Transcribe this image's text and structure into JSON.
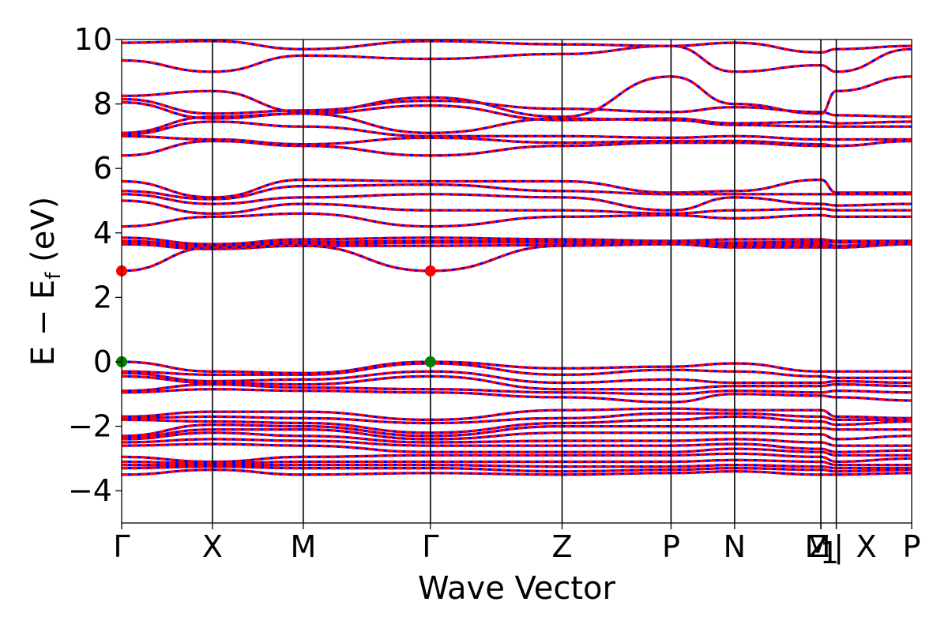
{
  "chart_data": {
    "type": "line",
    "title": "",
    "xlabel": "Wave Vector",
    "ylabel_parts": {
      "main": "E − E",
      "sub": "f",
      "unit": " (eV)"
    },
    "ylim": [
      -5,
      10
    ],
    "yticks": [
      -4,
      -2,
      0,
      2,
      4,
      6,
      8,
      10
    ],
    "ytick_labels": [
      "−4",
      "−2",
      "0",
      "2",
      "4",
      "6",
      "8",
      "10"
    ],
    "xlim": [
      0,
      8.7
    ],
    "kpath": [
      {
        "label": "Γ",
        "x": 0.0
      },
      {
        "label": "X",
        "x": 1.0
      },
      {
        "label": "M",
        "x": 2.0
      },
      {
        "label": "Γ",
        "x": 3.4
      },
      {
        "label": "Z",
        "x": 4.85
      },
      {
        "label": "P",
        "x": 6.05
      },
      {
        "label": "N",
        "x": 6.75
      },
      {
        "label": "Z",
        "x": 7.7
      },
      {
        "label": "M",
        "x": 7.7
      },
      {
        "label": "1",
        "x": 7.7
      },
      {
        "label": "|",
        "x": 7.87
      },
      {
        "label": "X",
        "x": 7.87
      },
      {
        "label": "P",
        "x": 8.7
      }
    ],
    "grid": false,
    "legend": "none",
    "colors": {
      "band_primary": "#ff0000",
      "band_secondary": "#0000ff",
      "cbm": "#ff0000",
      "vbm": "#008000",
      "axis": "#000000"
    },
    "markers": [
      {
        "kind": "CBM",
        "x": 0.0,
        "y": 2.82
      },
      {
        "kind": "CBM",
        "x": 3.4,
        "y": 2.82
      },
      {
        "kind": "VBM",
        "x": 0.0,
        "y": 0.0
      },
      {
        "kind": "VBM",
        "x": 3.4,
        "y": 0.0
      }
    ],
    "bands": [
      {
        "E": [
          9.9,
          9.95,
          9.7,
          9.95,
          9.85,
          9.8,
          9.9,
          9.6,
          9.7,
          9.8
        ]
      },
      {
        "E": [
          9.35,
          9.0,
          9.5,
          9.4,
          9.55,
          9.8,
          9.0,
          9.2,
          9.0,
          9.7
        ]
      },
      {
        "E": [
          8.25,
          8.4,
          7.75,
          8.2,
          7.6,
          8.85,
          8.0,
          7.7,
          8.4,
          8.85
        ]
      },
      {
        "E": [
          8.15,
          7.7,
          7.8,
          8.1,
          7.85,
          7.75,
          7.9,
          7.75,
          7.65,
          7.6
        ]
      },
      {
        "E": [
          8.05,
          7.55,
          7.7,
          7.95,
          7.5,
          7.55,
          7.4,
          7.45,
          7.4,
          7.45
        ]
      },
      {
        "E": [
          7.1,
          7.6,
          7.7,
          7.1,
          7.55,
          7.5,
          7.35,
          7.3,
          7.3,
          7.3
        ]
      },
      {
        "E": [
          7.05,
          7.45,
          7.3,
          7.0,
          7.0,
          6.95,
          7.0,
          6.9,
          6.9,
          6.9
        ]
      },
      {
        "E": [
          7.0,
          6.9,
          6.75,
          6.95,
          6.8,
          6.85,
          6.85,
          6.75,
          6.7,
          6.85
        ]
      },
      {
        "E": [
          6.4,
          6.85,
          6.7,
          6.4,
          6.7,
          6.8,
          6.8,
          6.7,
          6.7,
          6.85
        ]
      },
      {
        "E": [
          5.6,
          5.1,
          5.65,
          5.6,
          5.6,
          5.25,
          5.3,
          5.65,
          5.25,
          5.25
        ]
      },
      {
        "E": [
          5.3,
          5.05,
          5.45,
          5.5,
          5.3,
          5.2,
          5.2,
          5.2,
          5.2,
          5.2
        ]
      },
      {
        "E": [
          5.2,
          4.9,
          5.1,
          5.2,
          5.1,
          4.7,
          5.1,
          4.9,
          4.85,
          4.9
        ]
      },
      {
        "E": [
          5.0,
          4.6,
          4.9,
          4.7,
          4.7,
          4.6,
          4.7,
          4.75,
          4.7,
          4.7
        ]
      },
      {
        "E": [
          4.2,
          4.5,
          4.6,
          4.2,
          4.5,
          4.55,
          4.45,
          4.55,
          4.5,
          4.5
        ]
      },
      {
        "E": [
          3.85,
          3.65,
          3.8,
          3.85,
          3.8,
          3.75,
          3.8,
          3.8,
          3.75,
          3.75
        ]
      },
      {
        "E": [
          3.75,
          3.6,
          3.72,
          3.75,
          3.75,
          3.72,
          3.7,
          3.72,
          3.7,
          3.72
        ]
      },
      {
        "E": [
          3.7,
          3.55,
          3.65,
          3.7,
          3.7,
          3.7,
          3.65,
          3.65,
          3.6,
          3.7
        ]
      },
      {
        "E": [
          3.65,
          3.5,
          3.6,
          3.6,
          3.62,
          3.68,
          3.6,
          3.6,
          3.55,
          3.68
        ]
      },
      {
        "E": [
          2.82,
          3.55,
          3.6,
          2.82,
          3.6,
          3.65,
          3.55,
          3.55,
          3.55,
          3.65
        ]
      },
      {
        "E": [
          0.0,
          -0.3,
          -0.35,
          0.0,
          -0.2,
          -0.15,
          -0.05,
          -0.3,
          -0.3,
          -0.3
        ]
      },
      {
        "E": [
          -0.3,
          -0.4,
          -0.4,
          -0.05,
          -0.4,
          -0.25,
          -0.3,
          -0.45,
          -0.5,
          -0.5
        ]
      },
      {
        "E": [
          -0.35,
          -0.6,
          -0.55,
          -0.3,
          -0.65,
          -0.55,
          -0.65,
          -0.65,
          -0.6,
          -0.65
        ]
      },
      {
        "E": [
          -0.45,
          -0.65,
          -0.7,
          -0.45,
          -0.85,
          -0.85,
          -0.75,
          -0.75,
          -0.7,
          -0.75
        ]
      },
      {
        "E": [
          -0.9,
          -0.7,
          -0.8,
          -0.85,
          -0.95,
          -1.0,
          -0.9,
          -0.95,
          -0.9,
          -0.95
        ]
      },
      {
        "E": [
          -0.95,
          -0.85,
          -0.9,
          -0.95,
          -1.1,
          -1.25,
          -1.0,
          -1.05,
          -1.1,
          -1.2
        ]
      },
      {
        "E": [
          -1.7,
          -1.55,
          -1.55,
          -1.8,
          -1.5,
          -1.45,
          -1.5,
          -1.5,
          -1.7,
          -1.75
        ]
      },
      {
        "E": [
          -1.75,
          -1.7,
          -1.75,
          -1.9,
          -1.75,
          -1.6,
          -1.6,
          -1.7,
          -1.8,
          -1.8
        ]
      },
      {
        "E": [
          -1.8,
          -1.85,
          -1.9,
          -2.2,
          -1.9,
          -1.8,
          -1.7,
          -1.85,
          -1.95,
          -1.85
        ]
      },
      {
        "E": [
          -2.3,
          -1.95,
          -2.0,
          -2.3,
          -2.0,
          -2.0,
          -2.0,
          -2.05,
          -2.1,
          -2.1
        ]
      },
      {
        "E": [
          -2.35,
          -2.1,
          -2.1,
          -2.4,
          -2.2,
          -2.2,
          -2.2,
          -2.25,
          -2.4,
          -2.3
        ]
      },
      {
        "E": [
          -2.4,
          -2.2,
          -2.3,
          -2.5,
          -2.45,
          -2.45,
          -2.4,
          -2.5,
          -2.6,
          -2.6
        ]
      },
      {
        "E": [
          -2.5,
          -2.4,
          -2.45,
          -2.6,
          -2.6,
          -2.6,
          -2.55,
          -2.7,
          -2.8,
          -2.75
        ]
      },
      {
        "E": [
          -2.6,
          -2.55,
          -2.6,
          -2.8,
          -2.8,
          -2.8,
          -2.7,
          -2.8,
          -2.9,
          -2.9
        ]
      },
      {
        "E": [
          -2.95,
          -3.1,
          -2.95,
          -2.9,
          -2.9,
          -2.9,
          -2.85,
          -2.95,
          -3.1,
          -3.0
        ]
      },
      {
        "E": [
          -3.1,
          -3.15,
          -3.1,
          -3.1,
          -3.1,
          -3.1,
          -3.05,
          -3.1,
          -3.2,
          -3.2
        ]
      },
      {
        "E": [
          -3.2,
          -3.2,
          -3.2,
          -3.2,
          -3.25,
          -3.25,
          -3.2,
          -3.25,
          -3.3,
          -3.3
        ]
      },
      {
        "E": [
          -3.3,
          -3.25,
          -3.3,
          -3.3,
          -3.4,
          -3.35,
          -3.3,
          -3.35,
          -3.4,
          -3.35
        ]
      },
      {
        "E": [
          -3.5,
          -3.35,
          -3.5,
          -3.45,
          -3.5,
          -3.45,
          -3.4,
          -3.5,
          -3.5,
          -3.45
        ]
      }
    ]
  }
}
